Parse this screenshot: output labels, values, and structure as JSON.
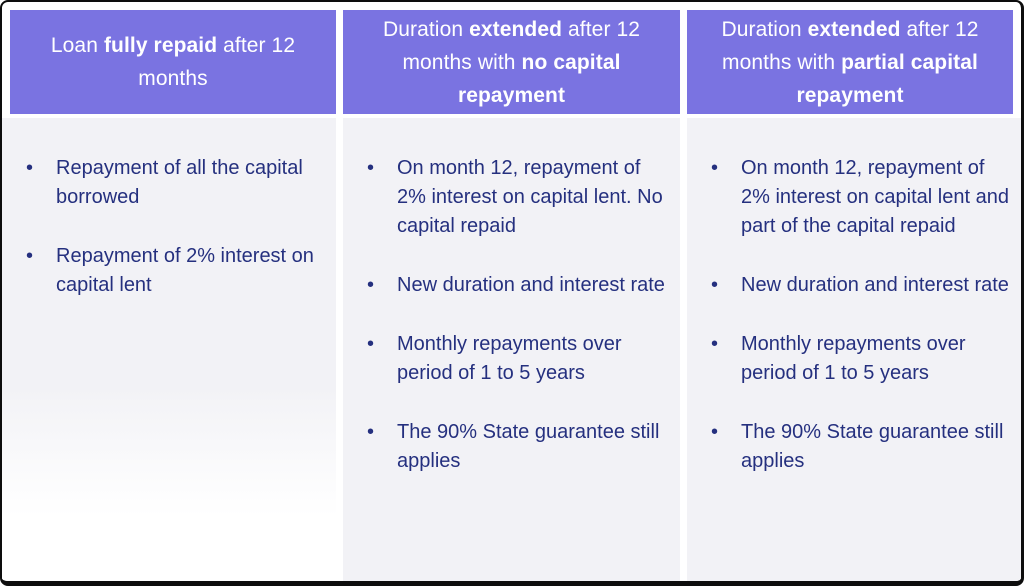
{
  "bullet_glyph": "•",
  "colors": {
    "header_bg": "#7a73e1",
    "body_bg": "#f2f2f6",
    "text_navy": "#25307f",
    "header_text": "#ffffff",
    "frame_border": "#0d0d0d"
  },
  "columns": [
    {
      "header_segments": [
        {
          "text": "Loan ",
          "bold": false
        },
        {
          "text": "fully repaid",
          "bold": true
        },
        {
          "text": " after 12 months",
          "bold": false
        }
      ],
      "bullets": [
        "Repayment of all the capital borrowed",
        "Repayment of 2% interest on capital lent"
      ]
    },
    {
      "header_segments": [
        {
          "text": "Duration ",
          "bold": false
        },
        {
          "text": "extended",
          "bold": true
        },
        {
          "text": " after 12 months with ",
          "bold": false
        },
        {
          "text": "no capital repayment",
          "bold": true
        }
      ],
      "bullets": [
        "On month 12, repayment of 2% interest on capital lent. No capital repaid",
        "New duration and interest rate",
        "Monthly repayments over period of 1 to 5 years",
        "The 90% State guarantee still applies"
      ]
    },
    {
      "header_segments": [
        {
          "text": "Duration ",
          "bold": false
        },
        {
          "text": "extended",
          "bold": true
        },
        {
          "text": " after 12 months with ",
          "bold": false
        },
        {
          "text": "partial capital repayment",
          "bold": true
        }
      ],
      "bullets": [
        "On month 12, repayment of 2% interest on capital lent and part of the capital repaid",
        "New duration and interest rate",
        "Monthly repayments over period of 1 to 5 years",
        "The 90% State guarantee still applies"
      ]
    }
  ]
}
